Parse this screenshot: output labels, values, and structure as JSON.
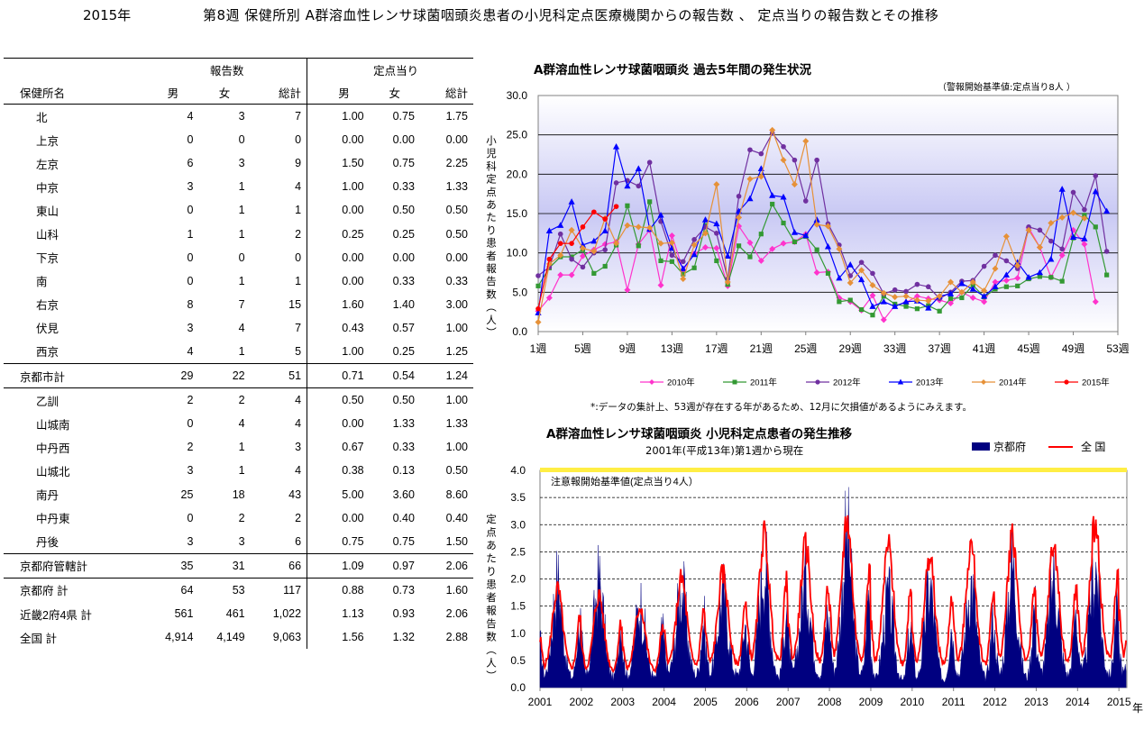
{
  "header": {
    "year_label": "2015年",
    "title": "第8週 保健所別 A群溶血性レンサ球菌咽頭炎患者の小児科定点医療機関からの報告数 、 定点当りの報告数とその推移"
  },
  "table": {
    "group_headers": [
      "報告数",
      "定点当り"
    ],
    "columns": [
      "保健所名",
      "男",
      "女",
      "総計",
      "男",
      "女",
      "総計"
    ],
    "rows": [
      {
        "name": "北",
        "values": [
          "4",
          "3",
          "7",
          "1.00",
          "0.75",
          "1.75"
        ]
      },
      {
        "name": "上京",
        "values": [
          "0",
          "0",
          "0",
          "0.00",
          "0.00",
          "0.00"
        ]
      },
      {
        "name": "左京",
        "values": [
          "6",
          "3",
          "9",
          "1.50",
          "0.75",
          "2.25"
        ]
      },
      {
        "name": "中京",
        "values": [
          "3",
          "1",
          "4",
          "1.00",
          "0.33",
          "1.33"
        ]
      },
      {
        "name": "東山",
        "values": [
          "0",
          "1",
          "1",
          "0.00",
          "0.50",
          "0.50"
        ]
      },
      {
        "name": "山科",
        "values": [
          "1",
          "1",
          "2",
          "0.25",
          "0.25",
          "0.50"
        ]
      },
      {
        "name": "下京",
        "values": [
          "0",
          "0",
          "0",
          "0.00",
          "0.00",
          "0.00"
        ]
      },
      {
        "name": "南",
        "values": [
          "0",
          "1",
          "1",
          "0.00",
          "0.33",
          "0.33"
        ]
      },
      {
        "name": "右京",
        "values": [
          "8",
          "7",
          "15",
          "1.60",
          "1.40",
          "3.00"
        ]
      },
      {
        "name": "伏見",
        "values": [
          "3",
          "4",
          "7",
          "0.43",
          "0.57",
          "1.00"
        ]
      },
      {
        "name": "西京",
        "values": [
          "4",
          "1",
          "5",
          "1.00",
          "0.25",
          "1.25"
        ]
      },
      {
        "name": "京都市計",
        "values": [
          "29",
          "22",
          "51",
          "0.71",
          "0.54",
          "1.24"
        ],
        "kind": "subtotal"
      },
      {
        "name": "乙訓",
        "values": [
          "2",
          "2",
          "4",
          "0.50",
          "0.50",
          "1.00"
        ]
      },
      {
        "name": "山城南",
        "values": [
          "0",
          "4",
          "4",
          "0.00",
          "1.33",
          "1.33"
        ]
      },
      {
        "name": "中丹西",
        "values": [
          "2",
          "1",
          "3",
          "0.67",
          "0.33",
          "1.00"
        ]
      },
      {
        "name": "山城北",
        "values": [
          "3",
          "1",
          "4",
          "0.38",
          "0.13",
          "0.50"
        ]
      },
      {
        "name": "南丹",
        "values": [
          "25",
          "18",
          "43",
          "5.00",
          "3.60",
          "8.60"
        ]
      },
      {
        "name": "中丹東",
        "values": [
          "0",
          "2",
          "2",
          "0.00",
          "0.40",
          "0.40"
        ]
      },
      {
        "name": "丹後",
        "values": [
          "3",
          "3",
          "6",
          "0.75",
          "0.75",
          "1.50"
        ]
      },
      {
        "name": "京都府管轄計",
        "values": [
          "35",
          "31",
          "66",
          "1.09",
          "0.97",
          "2.06"
        ],
        "kind": "subtotal"
      },
      {
        "name": "京都府 計",
        "values": [
          "64",
          "53",
          "117",
          "0.88",
          "0.73",
          "1.60"
        ],
        "kind": "total"
      },
      {
        "name": "近畿2府4県 計",
        "values": [
          "561",
          "461",
          "1,022",
          "1.13",
          "0.93",
          "2.06"
        ],
        "kind": "total"
      },
      {
        "name": "全国 計",
        "values": [
          "4,914",
          "4,149",
          "9,063",
          "1.56",
          "1.32",
          "2.88"
        ],
        "kind": "total"
      }
    ]
  },
  "chart_data": [
    {
      "type": "line",
      "title": "A群溶血性レンサ球菌咽頭炎 過去5年間の発生状況",
      "note": "（警報開始基準値:定点当り8人 ）",
      "ylabel": "小児科定点あたり患者報告数(人)",
      "ylim": [
        0,
        30
      ],
      "yticks": [
        "0.0",
        "5.0",
        "10.0",
        "15.0",
        "20.0",
        "25.0",
        "30.0"
      ],
      "ytick_values": [
        0,
        5,
        10,
        15,
        20,
        25,
        30
      ],
      "xtick_labels": [
        "1週",
        "5週",
        "9週",
        "13週",
        "17週",
        "21週",
        "25週",
        "29週",
        "33週",
        "37週",
        "41週",
        "45週",
        "49週",
        "53週"
      ],
      "xtick_values": [
        1,
        5,
        9,
        13,
        17,
        21,
        25,
        29,
        33,
        37,
        41,
        45,
        49,
        53
      ],
      "xlim": [
        1,
        53
      ],
      "grid": true,
      "legend_position": "bottom",
      "footnote": "*:データの集計上、53週が存在する年があるため、12月に欠損値があるようにみえます。",
      "series": [
        {
          "name": "2010年",
          "color": "#ff33cc",
          "marker": "diamond",
          "values": [
            2.6,
            4.3,
            7.2,
            7.2,
            9.6,
            10.4,
            11.1,
            11.4,
            5.3,
            11.1,
            12.9,
            5.9,
            12.2,
            7.8,
            9.9,
            10.7,
            10.6,
            5.8,
            13.4,
            11.3,
            9.0,
            10.5,
            11.2,
            11.4,
            12.4,
            7.5,
            7.6,
            4.3,
            3.8,
            2.7,
            4.6,
            1.5,
            3.3,
            3.7,
            4.5,
            4.2,
            4.0,
            3.6,
            5.0,
            4.3,
            3.8,
            6.3,
            6.5,
            6.8,
            13.2,
            10.7,
            6.9,
            9.7,
            12.9,
            11.1,
            3.8
          ]
        },
        {
          "name": "2011年",
          "color": "#339933",
          "marker": "square",
          "values": [
            5.8,
            8.1,
            9.5,
            9.5,
            10.4,
            7.4,
            8.3,
            11.0,
            16.0,
            10.9,
            16.5,
            9.0,
            8.9,
            7.3,
            8.1,
            13.5,
            9.0,
            6.0,
            10.9,
            9.5,
            12.4,
            16.2,
            13.8,
            11.4,
            12.1,
            10.4,
            7.4,
            3.8,
            4.0,
            2.8,
            2.1,
            4.5,
            3.5,
            3.2,
            2.9,
            3.3,
            2.6,
            4.2,
            4.3,
            5.9,
            4.4,
            5.4,
            5.7,
            5.8,
            6.7,
            7.0,
            6.9,
            6.4,
            11.9,
            14.8,
            13.3,
            7.2
          ]
        },
        {
          "name": "2012年",
          "color": "#7030a0",
          "marker": "circle",
          "values": [
            7.1,
            8.2,
            12.4,
            9.2,
            8.2,
            10.0,
            10.4,
            18.9,
            19.2,
            18.5,
            21.5,
            14.0,
            9.7,
            8.9,
            11.7,
            13.3,
            12.5,
            6.7,
            17.2,
            23.1,
            22.6,
            25.2,
            23.5,
            21.8,
            16.6,
            21.8,
            13.7,
            11.0,
            7.1,
            8.8,
            7.4,
            4.8,
            5.3,
            5.1,
            6.0,
            5.7,
            4.2,
            5.0,
            6.4,
            6.5,
            8.3,
            9.7,
            9.0,
            8.0,
            13.3,
            12.9,
            11.5,
            10.5,
            17.7,
            15.5,
            19.8,
            10.2
          ]
        },
        {
          "name": "2013年",
          "color": "#0000ff",
          "marker": "triangle",
          "values": [
            2.4,
            12.8,
            13.5,
            16.5,
            11.0,
            11.5,
            12.8,
            23.5,
            18.5,
            20.7,
            13.0,
            14.8,
            10.6,
            8.0,
            9.8,
            14.2,
            13.7,
            9.6,
            15.3,
            16.9,
            20.7,
            17.3,
            17.1,
            12.6,
            12.2,
            14.2,
            10.8,
            6.8,
            8.5,
            6.6,
            3.2,
            3.8,
            3.2,
            3.8,
            3.9,
            3.0,
            4.5,
            4.8,
            6.1,
            5.4,
            4.5,
            5.7,
            7.2,
            8.8,
            6.9,
            7.5,
            9.2,
            18.1,
            12.0,
            11.8,
            17.8,
            15.3
          ]
        },
        {
          "name": "2014年",
          "color": "#e69138",
          "marker": "diamond",
          "values": [
            1.2,
            8.6,
            9.7,
            12.9,
            10.6,
            10.2,
            14.4,
            11.2,
            13.5,
            13.3,
            13.2,
            11.2,
            11.3,
            6.7,
            11.0,
            12.5,
            18.7,
            6.3,
            14.5,
            19.4,
            19.7,
            25.6,
            21.8,
            18.7,
            24.2,
            13.6,
            13.4,
            10.5,
            6.2,
            7.8,
            5.9,
            4.9,
            4.4,
            4.5,
            4.0,
            3.9,
            4.5,
            6.3,
            5.0,
            6.3,
            5.2,
            8.0,
            12.1,
            8.4,
            12.9,
            10.7,
            13.8,
            14.5,
            15.1,
            14.4
          ]
        },
        {
          "name": "2015年",
          "color": "#ff0000",
          "marker": "circle",
          "values": [
            2.9,
            9.2,
            11.2,
            11.2,
            13.3,
            15.2,
            14.3,
            15.9
          ]
        }
      ]
    },
    {
      "type": "area",
      "title": "A群溶血性レンサ球菌咽頭炎 小児科定点患者の発生推移",
      "subtitle": "2001年(平成13年)第1週から現在",
      "ylabel": "定点あたり患者報告数(人)",
      "ylim": [
        0,
        4
      ],
      "yticks": [
        "0.0",
        "0.5",
        "1.0",
        "1.5",
        "2.0",
        "2.5",
        "3.0",
        "3.5",
        "4.0"
      ],
      "ytick_values": [
        0,
        0.5,
        1,
        1.5,
        2,
        2.5,
        3,
        3.5,
        4
      ],
      "xtick_labels": [
        "2001",
        "2002",
        "2003",
        "2004",
        "2005",
        "2006",
        "2007",
        "2008",
        "2009",
        "2010",
        "2011",
        "2012",
        "2013",
        "2014",
        "2015"
      ],
      "xunit": "年",
      "threshold_label": "注意報開始基準値(定点当り4人）",
      "threshold_value": 4,
      "grid": true,
      "legend_position": "top-right",
      "series": [
        {
          "name": "京都府",
          "color": "#000080",
          "kind": "area",
          "annual_peaks": [
            1.9,
            1.9,
            1.5,
            1.8,
            1.7,
            2.3,
            2.0,
            2.7,
            1.6,
            1.8,
            1.9,
            2.2,
            2.0,
            2.2,
            1.6
          ],
          "annual_troughs": [
            0.15,
            0.15,
            0.15,
            0.2,
            0.2,
            0.15,
            0.2,
            0.2,
            0.1,
            0.1,
            0.15,
            0.15,
            0.2,
            0.2,
            0.2
          ]
        },
        {
          "name": "全 国",
          "color": "#ff0000",
          "kind": "line",
          "annual_peaks": [
            1.8,
            1.7,
            1.5,
            2.0,
            2.1,
            2.8,
            2.6,
            3.1,
            2.6,
            2.4,
            2.6,
            2.8,
            2.6,
            3.0,
            2.9
          ],
          "annual_troughs": [
            0.35,
            0.3,
            0.3,
            0.4,
            0.4,
            0.45,
            0.45,
            0.5,
            0.4,
            0.4,
            0.4,
            0.45,
            0.45,
            0.5,
            0.5
          ]
        }
      ]
    }
  ]
}
